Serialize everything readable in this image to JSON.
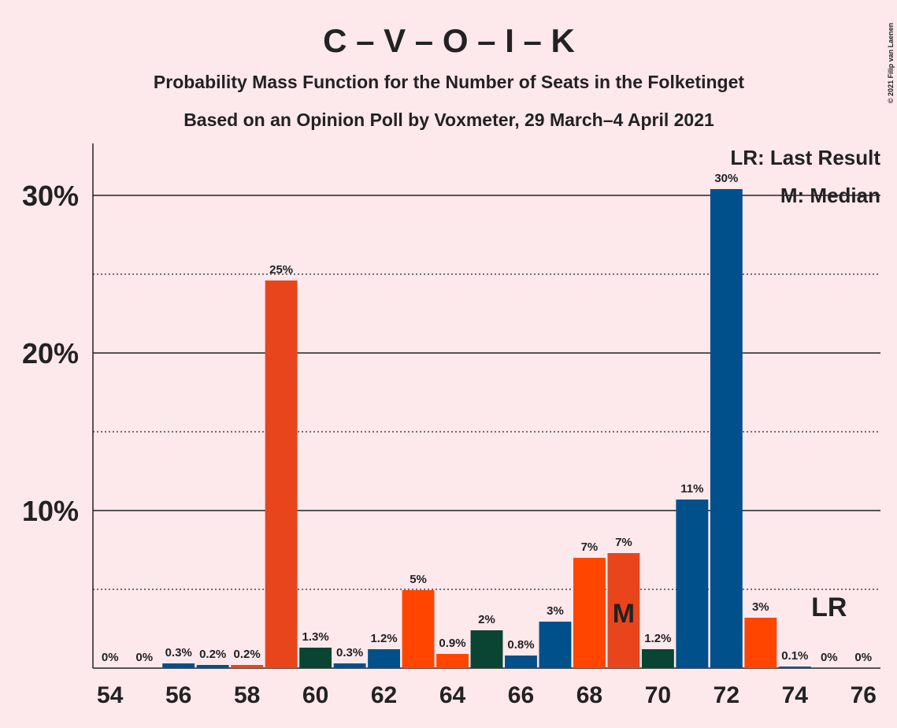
{
  "chart_data": {
    "type": "bar",
    "title": "C – V – O – I – K",
    "subtitle": "Probability Mass Function for the Number of Seats in the Folketinget",
    "subtitle2": "Based on an Opinion Poll by Voxmeter, 29 March–4 April 2021",
    "copyright": "© 2021 Filip van Laenen",
    "x": [
      54,
      55,
      56,
      57,
      58,
      59,
      60,
      61,
      62,
      63,
      64,
      65,
      66,
      67,
      68,
      69,
      70,
      71,
      72,
      73,
      74,
      75,
      76
    ],
    "values": [
      0,
      0,
      0.3,
      0.2,
      0.2,
      24.6,
      1.3,
      0.3,
      1.2,
      4.95,
      0.9,
      2.4,
      0.8,
      2.95,
      7.0,
      7.3,
      1.2,
      10.7,
      30.4,
      3.2,
      0.1,
      0,
      0
    ],
    "value_labels": [
      "0%",
      "0%",
      "0.3%",
      "0.2%",
      "0.2%",
      "25%",
      "1.3%",
      "0.3%",
      "1.2%",
      "5%",
      "0.9%",
      "2%",
      "0.8%",
      "3%",
      "7%",
      "7%",
      "1.2%",
      "11%",
      "30%",
      "3%",
      "0.1%",
      "0%",
      "0%"
    ],
    "colors": [
      "#00508c",
      "#00508c",
      "#00508c",
      "#00508c",
      "#e8451c",
      "#e8451c",
      "#0a4433",
      "#00508c",
      "#00508c",
      "#ff4500",
      "#ff4500",
      "#0a4433",
      "#00508c",
      "#00508c",
      "#ff4500",
      "#e8451c",
      "#0a4433",
      "#00508c",
      "#00508c",
      "#ff4500",
      "#00508c",
      "#00508c",
      "#00508c"
    ],
    "xlim": [
      53.5,
      76.5
    ],
    "xticks": [
      54,
      56,
      58,
      60,
      62,
      64,
      66,
      68,
      70,
      72,
      74,
      76
    ],
    "ylim": [
      0,
      33.3
    ],
    "yticks": [
      {
        "value": 10,
        "label": "10%"
      },
      {
        "value": 20,
        "label": "20%"
      },
      {
        "value": 30,
        "label": "30%"
      }
    ],
    "minor_yticks": [
      5,
      15,
      25
    ],
    "grid": true,
    "legend": [
      "LR: Last Result",
      "M: Median"
    ],
    "legend_position": "upper right",
    "median_marker": {
      "label": "M",
      "x": 69
    },
    "last_result_marker": {
      "label": "LR",
      "x": 75
    }
  }
}
